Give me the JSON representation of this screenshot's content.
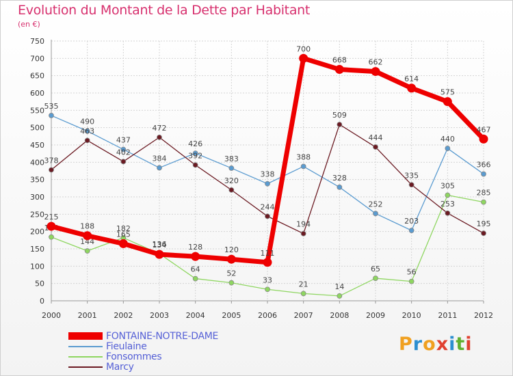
{
  "title": "Evolution du Montant de la Dette par Habitant",
  "subtitle": "(en €)",
  "logo": {
    "letters": [
      "P",
      "r",
      "o",
      "x",
      "i",
      "t",
      "i"
    ],
    "colors": [
      "#f0a020",
      "#2d8fd0",
      "#f0a020",
      "#e04030",
      "#2d8fd0",
      "#60b030",
      "#e04030"
    ]
  },
  "chart_data": {
    "type": "line",
    "x": [
      "2000",
      "2001",
      "2002",
      "2003",
      "2004",
      "2005",
      "2006",
      "2007",
      "2008",
      "2009",
      "2010",
      "2011",
      "2012"
    ],
    "ylim": [
      0,
      750
    ],
    "yticks": [
      0,
      50,
      100,
      150,
      200,
      250,
      300,
      350,
      400,
      450,
      500,
      550,
      600,
      650,
      700,
      750
    ],
    "grid": true,
    "series": [
      {
        "name": "Fieulaine",
        "color": "#5a9bd0",
        "values": [
          535,
          490,
          437,
          384,
          426,
          383,
          338,
          388,
          328,
          252,
          203,
          440,
          366
        ],
        "labels": [
          "535",
          "490",
          "437",
          "384",
          "426",
          "383",
          "338",
          "388",
          "328",
          "252",
          "203",
          "440",
          "366"
        ]
      },
      {
        "name": "Fonsommes",
        "color": "#8ed660",
        "values": [
          184,
          144,
          182,
          136,
          64,
          52,
          33,
          21,
          14,
          65,
          56,
          305,
          285
        ],
        "labels": [
          "184",
          "144",
          "182",
          "136",
          "64",
          "52",
          "33",
          "21",
          "14",
          "65",
          "56",
          "305",
          "285"
        ]
      },
      {
        "name": "Marcy",
        "color": "#6b1a22",
        "values": [
          378,
          463,
          402,
          472,
          392,
          320,
          244,
          194,
          509,
          444,
          335,
          253,
          195
        ],
        "labels": [
          "378",
          "463",
          "402",
          "472",
          "392",
          "320",
          "244",
          "194",
          "509",
          "444",
          "335",
          "253",
          "195"
        ]
      },
      {
        "name": "FONTAINE-NOTRE-DAME",
        "color": "#ee0000",
        "values": [
          215,
          188,
          165,
          134,
          128,
          120,
          111,
          700,
          668,
          662,
          614,
          575,
          467
        ],
        "labels": [
          "215",
          "188",
          "165",
          "134",
          "128",
          "120",
          "111",
          "700",
          "668",
          "662",
          "614",
          "575",
          "467"
        ]
      }
    ],
    "legend": [
      "FONTAINE-NOTRE-DAME",
      "Fieulaine",
      "Fonsommes",
      "Marcy"
    ]
  }
}
